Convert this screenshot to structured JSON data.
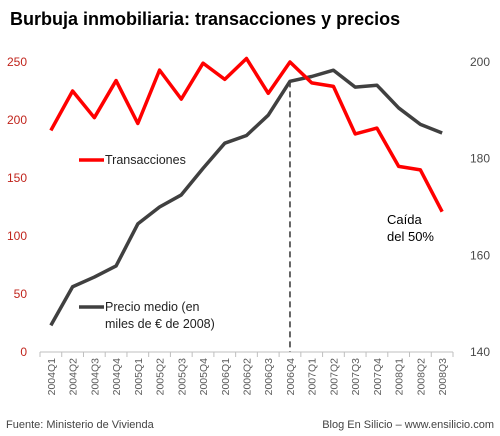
{
  "chart_data": {
    "type": "line",
    "title": "Burbuja inmobiliaria: transacciones y precios",
    "categories": [
      "2004Q1",
      "2004Q2",
      "2004Q3",
      "2004Q4",
      "2005Q1",
      "2005Q2",
      "2005Q3",
      "2005Q4",
      "2006Q1",
      "2006Q2",
      "2006Q3",
      "2006Q4",
      "2007Q1",
      "2007Q2",
      "2007Q3",
      "2007Q4",
      "2008Q1",
      "2008Q2",
      "2008Q3"
    ],
    "y_left": {
      "ylim": [
        0,
        250
      ],
      "ticks": [
        0,
        50,
        100,
        150,
        200,
        250
      ],
      "color": "#ff0000"
    },
    "y_right": {
      "ylim": [
        140,
        200
      ],
      "ticks": [
        140,
        160,
        180,
        200
      ],
      "color": "#404040"
    },
    "series": [
      {
        "name": "Transacciones",
        "axis": "left",
        "color": "#ff0000",
        "values": [
          191,
          225,
          202,
          234,
          197,
          243,
          218,
          249,
          235,
          253,
          223,
          250,
          232,
          229,
          188,
          193,
          160,
          157,
          121
        ]
      },
      {
        "name": "Precio medio (en miles de € de 2008)",
        "name_lines": [
          "Precio medio (en",
          "miles de € de 2008)"
        ],
        "axis": "right",
        "color": "#404040",
        "values": [
          145.5,
          153.5,
          155.5,
          157.8,
          166.5,
          170,
          172.5,
          178,
          183.2,
          184.8,
          189,
          196,
          197,
          198.3,
          194.8,
          195.2,
          190.5,
          187.1,
          185.3
        ]
      }
    ],
    "vline_at": "2006Q4",
    "annotation": [
      "Caída",
      "del 50%"
    ],
    "legend": "inside-left",
    "grid": false
  },
  "footer": {
    "source": "Fuente: Ministerio de Vivienda",
    "credit": "Blog En Silicio – www.ensilicio.com"
  }
}
